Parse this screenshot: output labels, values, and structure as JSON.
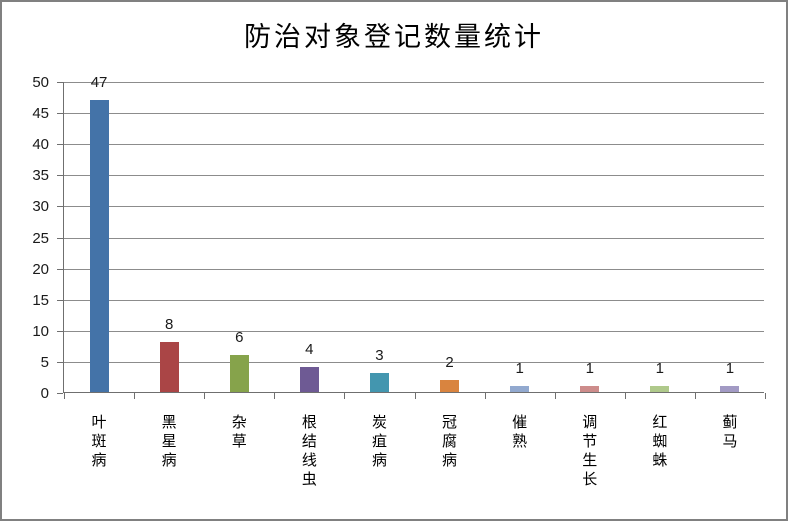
{
  "chart_data": {
    "type": "bar",
    "title": "防治对象登记数量统计",
    "categories": [
      "叶斑病",
      "黑星病",
      "杂草",
      "根结线虫",
      "炭疽病",
      "冠腐病",
      "催熟",
      "调节生长",
      "红蜘蛛",
      "蓟马"
    ],
    "values": [
      47,
      8,
      6,
      4,
      3,
      2,
      1,
      1,
      1,
      1
    ],
    "data_labels": [
      "47",
      "8",
      "6",
      "4",
      "3",
      "2",
      "1",
      "1",
      "1",
      "1"
    ],
    "bar_colors": [
      "#4473A8",
      "#AA4546",
      "#86A34B",
      "#6E5A94",
      "#4396AF",
      "#D9843F",
      "#92A9CF",
      "#CD8C8B",
      "#AFC98B",
      "#A29AC4"
    ],
    "xlabel": "",
    "ylabel": "",
    "ylim": [
      0,
      50
    ],
    "ytick_step": 5,
    "ytick_labels": [
      "0",
      "5",
      "10",
      "15",
      "20",
      "25",
      "30",
      "35",
      "40",
      "45",
      "50"
    ],
    "grid": "horizontal gridlines on",
    "legend": "none"
  },
  "palette": {
    "background": "#FFFFFF",
    "frame_border": "#808080",
    "axis_line": "#6F6F6F",
    "gridline": "#8C8C8C",
    "text": "#1A1A1A"
  }
}
